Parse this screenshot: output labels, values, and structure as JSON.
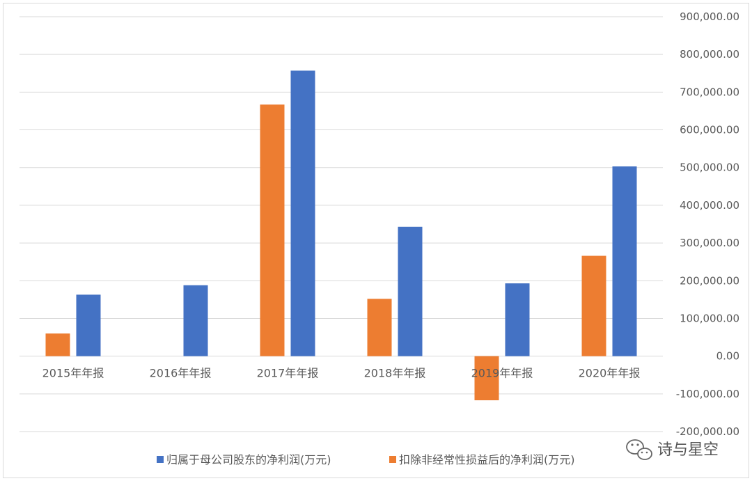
{
  "chart_data": {
    "type": "bar",
    "categories": [
      "2015年年报",
      "2016年年报",
      "2017年年报",
      "2018年年报",
      "2019年年报",
      "2020年年报"
    ],
    "series": [
      {
        "name": "扣除非经常性损益后的净利润(万元)",
        "color": "#ed7d31",
        "values": [
          60000,
          null,
          667000,
          152000,
          -117000,
          266000
        ]
      },
      {
        "name": "归属于母公司股东的净利润(万元)",
        "color": "#4472c4",
        "values": [
          163000,
          188000,
          757000,
          343000,
          193000,
          503000
        ]
      }
    ],
    "ylim": [
      -200000,
      900000
    ],
    "yticks": [
      900000,
      800000,
      700000,
      600000,
      500000,
      400000,
      300000,
      200000,
      100000,
      0,
      -100000,
      -200000
    ],
    "ytick_labels": [
      "900,000.00",
      "800,000.00",
      "700,000.00",
      "600,000.00",
      "500,000.00",
      "400,000.00",
      "300,000.00",
      "200,000.00",
      "100,000.00",
      "0.00",
      "-100,000.00",
      "-200,000.00"
    ],
    "y_axis_side": "right",
    "grid": true,
    "legend_position": "bottom",
    "legend_order": [
      "归属于母公司股东的净利润(万元)",
      "扣除非经常性损益后的净利润(万元)"
    ],
    "gridline_color": "#d9d9d9"
  },
  "watermark": {
    "text": "诗与星空",
    "icon": "wechat-icon"
  }
}
